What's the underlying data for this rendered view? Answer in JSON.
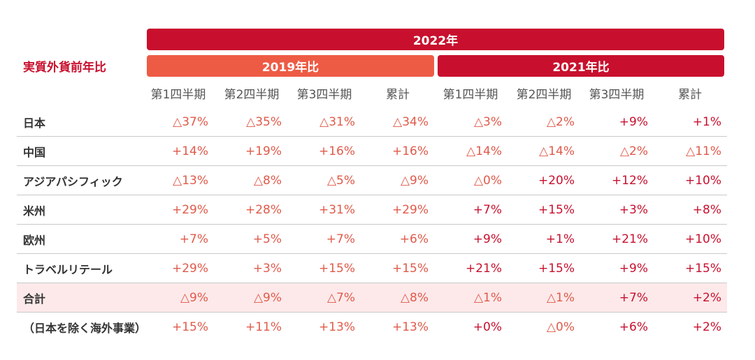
{
  "header": {
    "year_2022": "2022年",
    "vs_2019": "2019年比",
    "vs_2021": "2021年比",
    "metric_label": "実質外貨前年比"
  },
  "columns": [
    "第1四半期",
    "第2四半期",
    "第3四半期",
    "累計",
    "第1四半期",
    "第2四半期",
    "第3四半期",
    "累計"
  ],
  "rows": [
    {
      "label": "日本",
      "values": [
        "△37%",
        "△35%",
        "△31%",
        "△34%",
        "△3%",
        "△2%",
        "+9%",
        "+1%"
      ]
    },
    {
      "label": "中国",
      "values": [
        "+14%",
        "+19%",
        "+16%",
        "+16%",
        "△14%",
        "△14%",
        "△2%",
        "△11%"
      ]
    },
    {
      "label": "アジアパシフィック",
      "values": [
        "△13%",
        "△8%",
        "△5%",
        "△9%",
        "△0%",
        "+20%",
        "+12%",
        "+10%"
      ]
    },
    {
      "label": "米州",
      "values": [
        "+29%",
        "+28%",
        "+31%",
        "+29%",
        "+7%",
        "+15%",
        "+3%",
        "+8%"
      ]
    },
    {
      "label": "欧州",
      "values": [
        "+7%",
        "+5%",
        "+7%",
        "+6%",
        "+9%",
        "+1%",
        "+21%",
        "+10%"
      ]
    },
    {
      "label": "トラベルリテール",
      "values": [
        "+29%",
        "+3%",
        "+15%",
        "+15%",
        "+21%",
        "+15%",
        "+9%",
        "+15%"
      ]
    },
    {
      "label": "合計",
      "values": [
        "△9%",
        "△9%",
        "△7%",
        "△8%",
        "△1%",
        "△1%",
        "+7%",
        "+2%"
      ]
    },
    {
      "label": "（日本を除く海外事業）",
      "values": [
        "+15%",
        "+11%",
        "+13%",
        "+13%",
        "+0%",
        "△0%",
        "+6%",
        "+2%"
      ]
    }
  ],
  "colors": {
    "brand_red": "#c8102e",
    "orange_red": "#ee5b45",
    "total_row_bg": "#fde9ea"
  }
}
